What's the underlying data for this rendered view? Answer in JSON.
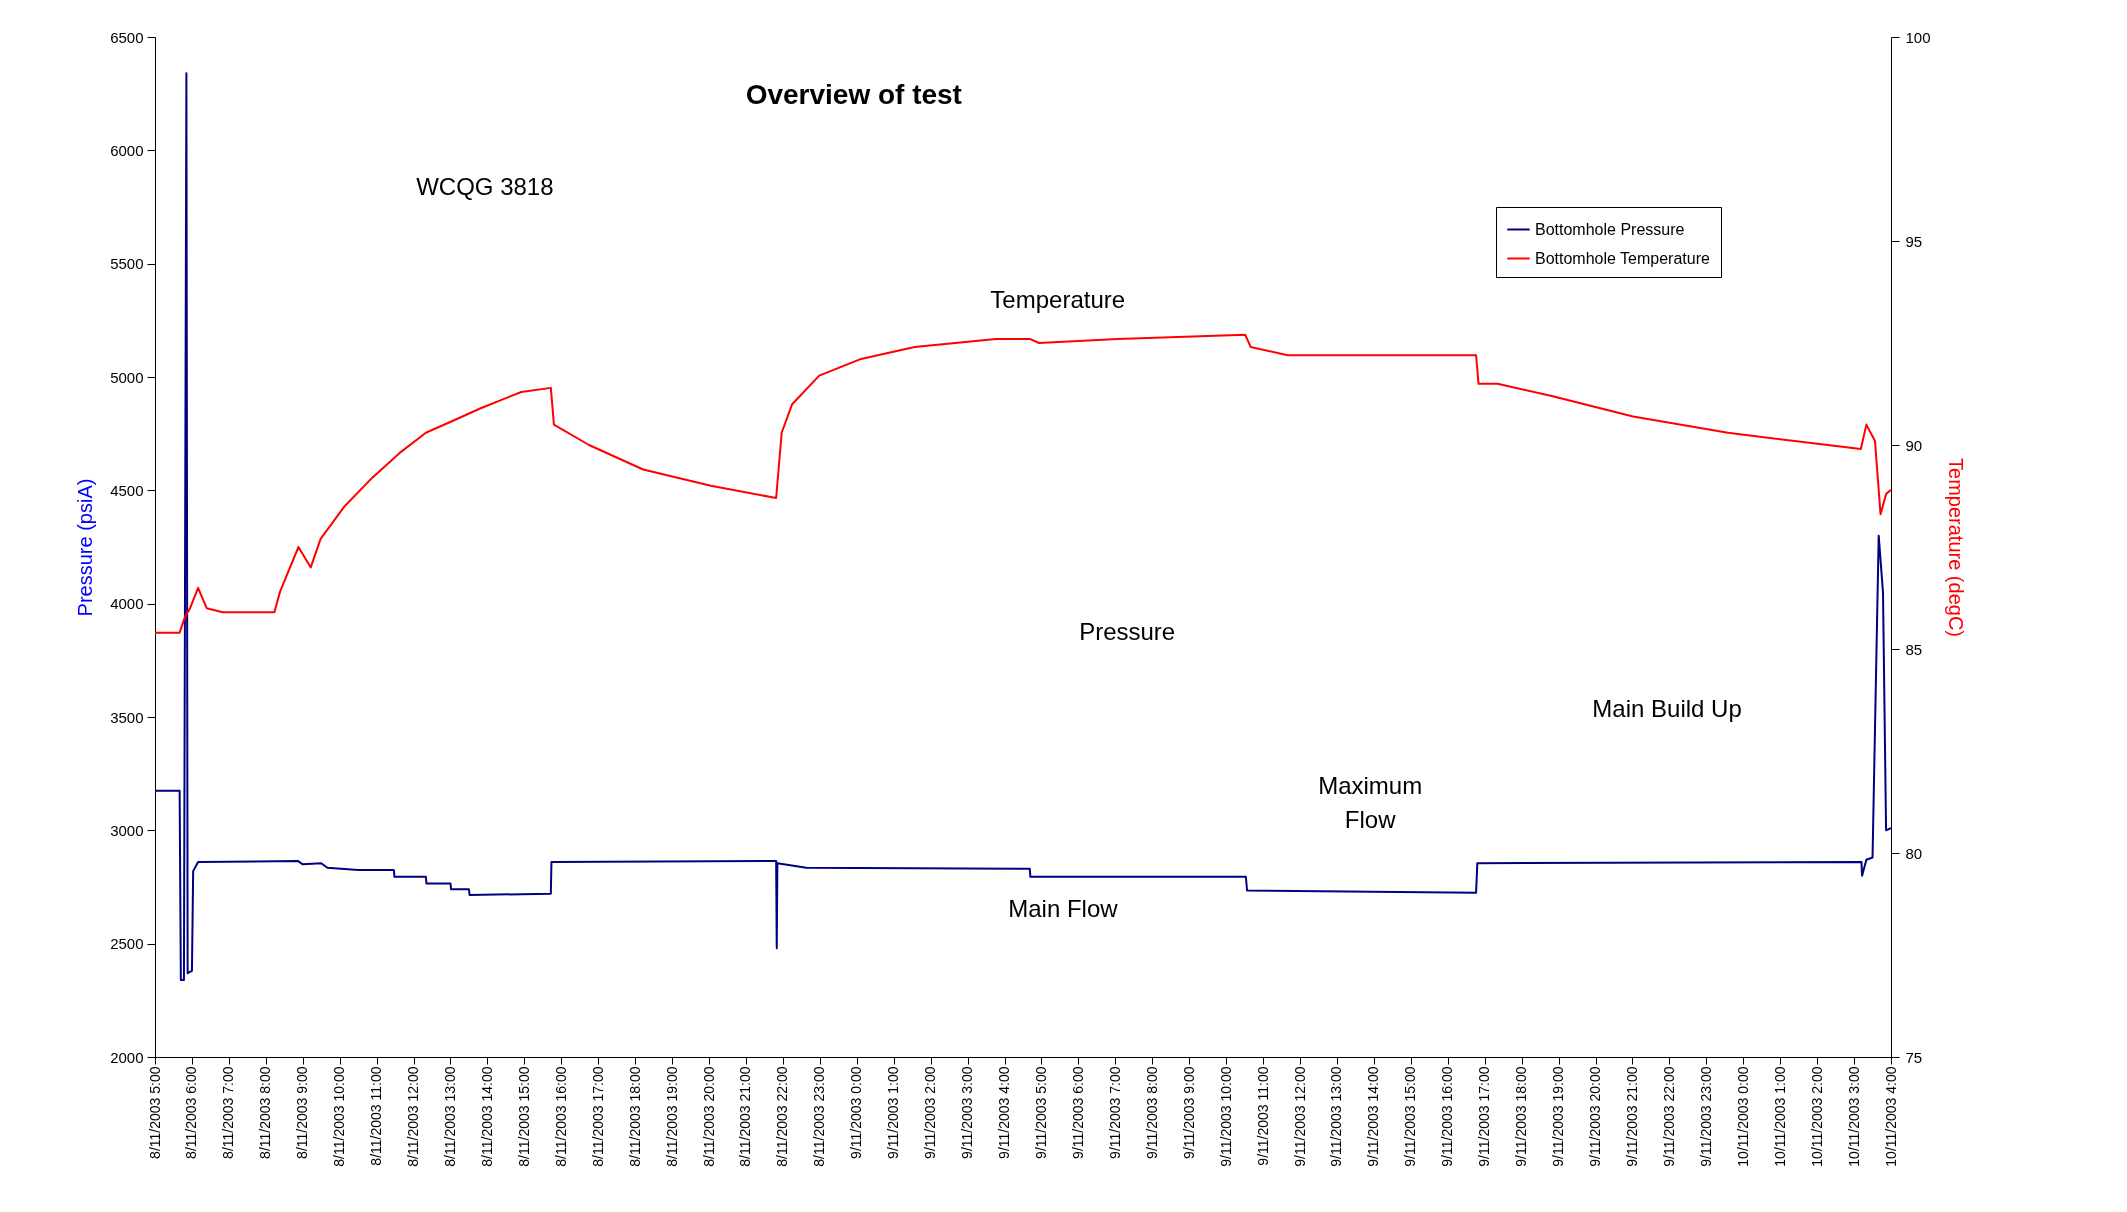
{
  "chart_data": {
    "type": "line",
    "title": "Overview of test",
    "ylabel": "Pressure (psiA)",
    "y2label": "Temperature (degC)",
    "legend": "top right",
    "xlim": [
      "2003-11-08T05:00",
      "2003-11-10T04:00"
    ],
    "xticks": [
      {
        "value": "2003-11-08T05:00",
        "label": "8/11/2003 5:00"
      },
      {
        "value": "2003-11-08T06:00",
        "label": "8/11/2003 6:00"
      },
      {
        "value": "2003-11-08T07:00",
        "label": "8/11/2003 7:00"
      },
      {
        "value": "2003-11-08T08:00",
        "label": "8/11/2003 8:00"
      },
      {
        "value": "2003-11-08T09:00",
        "label": "8/11/2003 9:00"
      },
      {
        "value": "2003-11-08T10:00",
        "label": "8/11/2003 10:00"
      },
      {
        "value": "2003-11-08T11:00",
        "label": "8/11/2003 11:00"
      },
      {
        "value": "2003-11-08T12:00",
        "label": "8/11/2003 12:00"
      },
      {
        "value": "2003-11-08T13:00",
        "label": "8/11/2003 13:00"
      },
      {
        "value": "2003-11-08T14:00",
        "label": "8/11/2003 14:00"
      },
      {
        "value": "2003-11-08T15:00",
        "label": "8/11/2003 15:00"
      },
      {
        "value": "2003-11-08T16:00",
        "label": "8/11/2003 16:00"
      },
      {
        "value": "2003-11-08T17:00",
        "label": "8/11/2003 17:00"
      },
      {
        "value": "2003-11-08T18:00",
        "label": "8/11/2003 18:00"
      },
      {
        "value": "2003-11-08T19:00",
        "label": "8/11/2003 19:00"
      },
      {
        "value": "2003-11-08T20:00",
        "label": "8/11/2003 20:00"
      },
      {
        "value": "2003-11-08T21:00",
        "label": "8/11/2003 21:00"
      },
      {
        "value": "2003-11-08T22:00",
        "label": "8/11/2003 22:00"
      },
      {
        "value": "2003-11-08T23:00",
        "label": "8/11/2003 23:00"
      },
      {
        "value": "2003-11-09T00:00",
        "label": "9/11/2003 0:00"
      },
      {
        "value": "2003-11-09T01:00",
        "label": "9/11/2003 1:00"
      },
      {
        "value": "2003-11-09T02:00",
        "label": "9/11/2003 2:00"
      },
      {
        "value": "2003-11-09T03:00",
        "label": "9/11/2003 3:00"
      },
      {
        "value": "2003-11-09T04:00",
        "label": "9/11/2003 4:00"
      },
      {
        "value": "2003-11-09T05:00",
        "label": "9/11/2003 5:00"
      },
      {
        "value": "2003-11-09T06:00",
        "label": "9/11/2003 6:00"
      },
      {
        "value": "2003-11-09T07:00",
        "label": "9/11/2003 7:00"
      },
      {
        "value": "2003-11-09T08:00",
        "label": "9/11/2003 8:00"
      },
      {
        "value": "2003-11-09T09:00",
        "label": "9/11/2003 9:00"
      },
      {
        "value": "2003-11-09T10:00",
        "label": "9/11/2003 10:00"
      },
      {
        "value": "2003-11-09T11:00",
        "label": "9/11/2003 11:00"
      },
      {
        "value": "2003-11-09T12:00",
        "label": "9/11/2003 12:00"
      },
      {
        "value": "2003-11-09T13:00",
        "label": "9/11/2003 13:00"
      },
      {
        "value": "2003-11-09T14:00",
        "label": "9/11/2003 14:00"
      },
      {
        "value": "2003-11-09T15:00",
        "label": "9/11/2003 15:00"
      },
      {
        "value": "2003-11-09T16:00",
        "label": "9/11/2003 16:00"
      },
      {
        "value": "2003-11-09T17:00",
        "label": "9/11/2003 17:00"
      },
      {
        "value": "2003-11-09T18:00",
        "label": "9/11/2003 18:00"
      },
      {
        "value": "2003-11-09T19:00",
        "label": "9/11/2003 19:00"
      },
      {
        "value": "2003-11-09T20:00",
        "label": "9/11/2003 20:00"
      },
      {
        "value": "2003-11-09T21:00",
        "label": "9/11/2003 21:00"
      },
      {
        "value": "2003-11-09T22:00",
        "label": "9/11/2003 22:00"
      },
      {
        "value": "2003-11-09T23:00",
        "label": "9/11/2003 23:00"
      },
      {
        "value": "2003-11-10T00:00",
        "label": "10/11/2003 0:00"
      },
      {
        "value": "2003-11-10T01:00",
        "label": "10/11/2003 1:00"
      },
      {
        "value": "2003-11-10T02:00",
        "label": "10/11/2003 2:00"
      },
      {
        "value": "2003-11-10T03:00",
        "label": "10/11/2003 3:00"
      },
      {
        "value": "2003-11-10T04:00",
        "label": "10/11/2003 4:00"
      }
    ],
    "ylim": [
      2000,
      6500
    ],
    "yticks": [
      2000,
      2500,
      3000,
      3500,
      4000,
      4500,
      5000,
      5500,
      6000,
      6500
    ],
    "y2lim": [
      75,
      100
    ],
    "y2ticks": [
      75,
      80,
      85,
      90,
      95,
      100
    ],
    "annotations": [
      "WCQG 3818",
      "Temperature",
      "Pressure",
      "Main Flow",
      "Maximum\nFlow",
      "Main Build Up"
    ],
    "series": [
      {
        "name": "Bottomhole Pressure",
        "color": "#000080",
        "x": [
          "2003-11-08T05:00",
          "2003-11-08T05:40",
          "2003-11-08T05:42",
          "2003-11-08T05:47",
          "2003-11-08T05:51",
          "2003-11-08T05:53",
          "2003-11-08T06:00",
          "2003-11-08T06:02",
          "2003-11-08T06:10",
          "2003-11-08T08:52",
          "2003-11-08T09:00",
          "2003-11-08T09:30",
          "2003-11-08T09:40",
          "2003-11-08T10:30",
          "2003-11-08T11:28",
          "2003-11-08T11:29",
          "2003-11-08T12:20",
          "2003-11-08T12:21",
          "2003-11-08T13:00",
          "2003-11-08T13:01",
          "2003-11-08T13:30",
          "2003-11-08T13:31",
          "2003-11-08T15:43",
          "2003-11-08T15:44",
          "2003-11-08T21:49",
          "2003-11-08T21:50",
          "2003-11-08T21:51",
          "2003-11-08T22:38",
          "2003-11-09T04:41",
          "2003-11-09T04:42",
          "2003-11-09T10:32",
          "2003-11-09T10:34",
          "2003-11-09T16:46",
          "2003-11-09T16:48",
          "2003-11-10T03:12",
          "2003-11-10T03:13",
          "2003-11-10T03:20",
          "2003-11-10T03:30",
          "2003-11-10T03:40",
          "2003-11-10T03:47",
          "2003-11-10T03:52",
          "2003-11-10T04:00"
        ],
        "values": [
          3175,
          3175,
          2340,
          2340,
          6340,
          2370,
          2380,
          2820,
          2860,
          2865,
          2850,
          2855,
          2835,
          2825,
          2825,
          2795,
          2795,
          2765,
          2765,
          2740,
          2740,
          2715,
          2720,
          2860,
          2865,
          2480,
          2855,
          2835,
          2830,
          2795,
          2795,
          2735,
          2725,
          2855,
          2860,
          2800,
          2870,
          2880,
          4300,
          4050,
          3000,
          3010
        ]
      },
      {
        "name": "Bottomhole Temperature",
        "color": "#ff0000",
        "axis": "y2",
        "x": [
          "2003-11-08T05:00",
          "2003-11-08T05:40",
          "2003-11-08T05:49",
          "2003-11-08T05:57",
          "2003-11-08T06:10",
          "2003-11-08T06:24",
          "2003-11-08T06:50",
          "2003-11-08T08:14",
          "2003-11-08T08:23",
          "2003-11-08T08:53",
          "2003-11-08T09:13",
          "2003-11-08T09:29",
          "2003-11-08T10:08",
          "2003-11-08T10:53",
          "2003-11-08T11:37",
          "2003-11-08T12:20",
          "2003-11-08T13:05",
          "2003-11-08T13:49",
          "2003-11-08T14:55",
          "2003-11-08T15:43",
          "2003-11-08T15:48",
          "2003-11-08T16:45",
          "2003-11-08T18:13",
          "2003-11-08T20:03",
          "2003-11-08T21:49",
          "2003-11-08T21:58",
          "2003-11-08T22:15",
          "2003-11-08T22:59",
          "2003-11-09T00:05",
          "2003-11-09T01:34",
          "2003-11-09T03:46",
          "2003-11-09T04:41",
          "2003-11-09T04:56",
          "2003-11-09T07:04",
          "2003-11-09T10:31",
          "2003-11-09T10:40",
          "2003-11-09T11:40",
          "2003-11-09T12:35",
          "2003-11-09T16:46",
          "2003-11-09T16:50",
          "2003-11-09T17:21",
          "2003-11-09T18:49",
          "2003-11-09T21:01",
          "2003-11-09T23:35",
          "2003-11-10T03:11",
          "2003-11-10T03:20",
          "2003-11-10T03:34",
          "2003-11-10T03:43",
          "2003-11-10T03:52",
          "2003-11-10T04:00"
        ],
        "values": [
          85.4,
          85.4,
          85.8,
          86.0,
          86.5,
          86.0,
          85.9,
          85.9,
          86.4,
          87.5,
          87.0,
          87.7,
          88.5,
          89.2,
          89.8,
          90.3,
          90.6,
          90.9,
          91.3,
          91.4,
          90.5,
          90.0,
          89.4,
          89.0,
          88.7,
          90.3,
          91.0,
          91.7,
          92.1,
          92.4,
          92.6,
          92.6,
          92.5,
          92.6,
          92.7,
          92.4,
          92.2,
          92.2,
          92.2,
          91.5,
          91.5,
          91.2,
          90.7,
          90.3,
          89.9,
          90.5,
          90.1,
          88.3,
          88.8,
          88.9
        ]
      }
    ]
  }
}
